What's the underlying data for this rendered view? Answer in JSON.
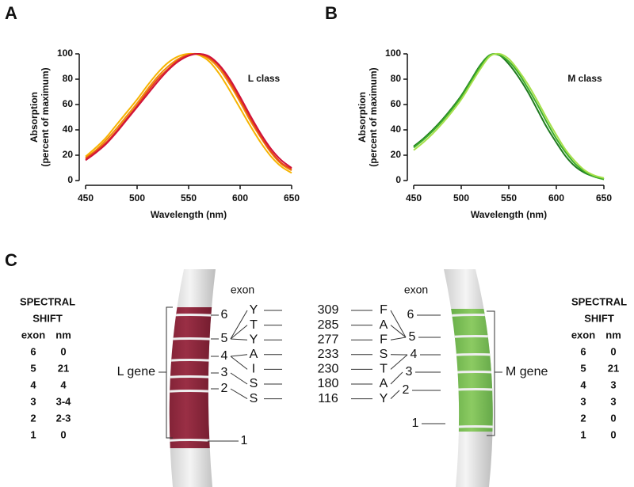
{
  "chart_data": [
    {
      "type": "line",
      "panel": "A",
      "annotation": "L class",
      "xlabel": "Wavelength (nm)",
      "ylabel": [
        "Absorption",
        "(percent of maximum)"
      ],
      "x": [
        450,
        460,
        470,
        480,
        490,
        500,
        510,
        520,
        530,
        540,
        550,
        560,
        570,
        580,
        590,
        600,
        610,
        620,
        630,
        640,
        650
      ],
      "series": [
        {
          "color": "#f6b400",
          "values": [
            19,
            26,
            34,
            44,
            54,
            64,
            75,
            85,
            93,
            98,
            100,
            99,
            94,
            84,
            71,
            57,
            43,
            30,
            19,
            11,
            6
          ]
        },
        {
          "color": "#f08a0c",
          "values": [
            18,
            24,
            32,
            41,
            51,
            61,
            72,
            82,
            90,
            96,
            99.5,
            99.7,
            96,
            88,
            76,
            62,
            47,
            34,
            22,
            13,
            8
          ]
        },
        {
          "color": "#e4421c",
          "values": [
            17,
            23,
            30,
            39,
            49,
            59,
            70,
            80,
            88,
            95,
            99,
            99.9,
            97,
            90,
            78,
            64,
            49,
            35,
            23,
            14,
            9
          ]
        },
        {
          "color": "#d0123a",
          "values": [
            16,
            22,
            29,
            38,
            48,
            58,
            68,
            78,
            87,
            94,
            98.5,
            100,
            98,
            91,
            80,
            66,
            51,
            37,
            25,
            16,
            10
          ]
        }
      ],
      "xlim": [
        450,
        650
      ],
      "ylim": [
        0,
        100
      ],
      "xticks": [
        450,
        500,
        550,
        600,
        650
      ],
      "yticks": [
        0,
        20,
        40,
        60,
        80,
        100
      ]
    },
    {
      "type": "line",
      "panel": "B",
      "annotation": "M class",
      "xlabel": "Wavelength (nm)",
      "ylabel": [
        "Absorption",
        "(percent of maximum)"
      ],
      "x": [
        450,
        460,
        470,
        480,
        490,
        500,
        510,
        520,
        530,
        540,
        550,
        560,
        570,
        580,
        590,
        600,
        610,
        620,
        630,
        640,
        650
      ],
      "series": [
        {
          "color": "#1f7a1f",
          "values": [
            27,
            33,
            40,
            48,
            57,
            67,
            79,
            91,
            99,
            99,
            92,
            82,
            70,
            56,
            42,
            30,
            19,
            11,
            6,
            3,
            1
          ]
        },
        {
          "color": "#3fae2a",
          "values": [
            26,
            32,
            39,
            47,
            56,
            66,
            78,
            90,
            99,
            99,
            94,
            85,
            73,
            60,
            46,
            33,
            22,
            13,
            7,
            3,
            1
          ]
        },
        {
          "color": "#a6e04a",
          "values": [
            24,
            30,
            37,
            45,
            54,
            64,
            76,
            88,
            98,
            100,
            96,
            87,
            76,
            63,
            49,
            36,
            24,
            15,
            8,
            4,
            2
          ]
        }
      ],
      "xlim": [
        450,
        650
      ],
      "ylim": [
        0,
        100
      ],
      "xticks": [
        450,
        500,
        550,
        600,
        650
      ],
      "yticks": [
        0,
        20,
        40,
        60,
        80,
        100
      ]
    }
  ],
  "diagram": {
    "panel": "C",
    "left": {
      "gene": "L gene",
      "exon_header": "exon",
      "exons": [
        "6",
        "5",
        "4",
        "3",
        "2",
        "1"
      ],
      "shift": {
        "title": [
          "SPECTRAL",
          "SHIFT"
        ],
        "columns": [
          "exon",
          "nm"
        ],
        "rows": [
          [
            "6",
            "0"
          ],
          [
            "5",
            "21"
          ],
          [
            "4",
            "4"
          ],
          [
            "3",
            "3-4"
          ],
          [
            "2",
            "2-3"
          ],
          [
            "1",
            "0"
          ]
        ]
      }
    },
    "right": {
      "gene": "M gene",
      "exon_header": "exon",
      "exons": [
        "6",
        "5",
        "4",
        "3",
        "2",
        "1"
      ],
      "shift": {
        "title": [
          "SPECTRAL",
          "SHIFT"
        ],
        "columns": [
          "exon",
          "nm"
        ],
        "rows": [
          [
            "6",
            "0"
          ],
          [
            "5",
            "21"
          ],
          [
            "4",
            "3"
          ],
          [
            "3",
            "3"
          ],
          [
            "2",
            "0"
          ],
          [
            "1",
            "0"
          ]
        ]
      }
    },
    "sites": [
      {
        "position": "309",
        "l": "Y",
        "m": "F"
      },
      {
        "position": "285",
        "l": "T",
        "m": "A"
      },
      {
        "position": "277",
        "l": "Y",
        "m": "F"
      },
      {
        "position": "233",
        "l": "A",
        "m": "S"
      },
      {
        "position": "230",
        "l": "I",
        "m": "T"
      },
      {
        "position": "180",
        "l": "S",
        "m": "A"
      },
      {
        "position": "116",
        "l": "S",
        "m": "Y"
      }
    ]
  }
}
